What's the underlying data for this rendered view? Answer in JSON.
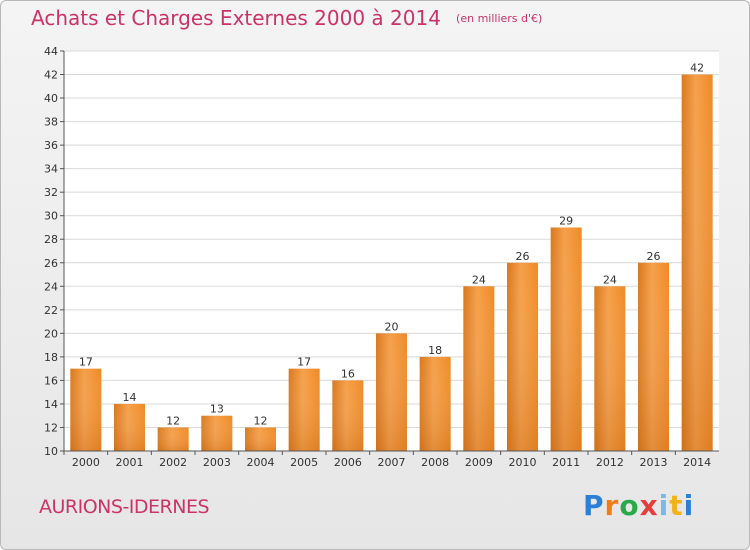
{
  "header": {
    "title": "Achats et Charges Externes 2000 à 2014",
    "unit": "(en milliers d'€)"
  },
  "footer": {
    "commune": "AURIONS-IDERNES",
    "logo": "Proxiti"
  },
  "chart_data": {
    "type": "bar",
    "title": "Achats et Charges Externes 2000 à 2014",
    "subtitle": "(en milliers d'€)",
    "xlabel": "",
    "ylabel": "",
    "categories": [
      "2000",
      "2001",
      "2002",
      "2003",
      "2004",
      "2005",
      "2006",
      "2007",
      "2008",
      "2009",
      "2010",
      "2011",
      "2012",
      "2013",
      "2014"
    ],
    "values": [
      17,
      14,
      12,
      13,
      12,
      17,
      16,
      20,
      18,
      24,
      26,
      29,
      24,
      26,
      42
    ],
    "ylim": [
      10,
      44
    ],
    "yticks": [
      10,
      12,
      14,
      16,
      18,
      20,
      22,
      24,
      26,
      28,
      30,
      32,
      34,
      36,
      38,
      40,
      42,
      44
    ],
    "grid": true,
    "bar_color": "#f0902a",
    "bar_color_dark": "#d4761c",
    "grid_color": "#d9d9d9"
  }
}
